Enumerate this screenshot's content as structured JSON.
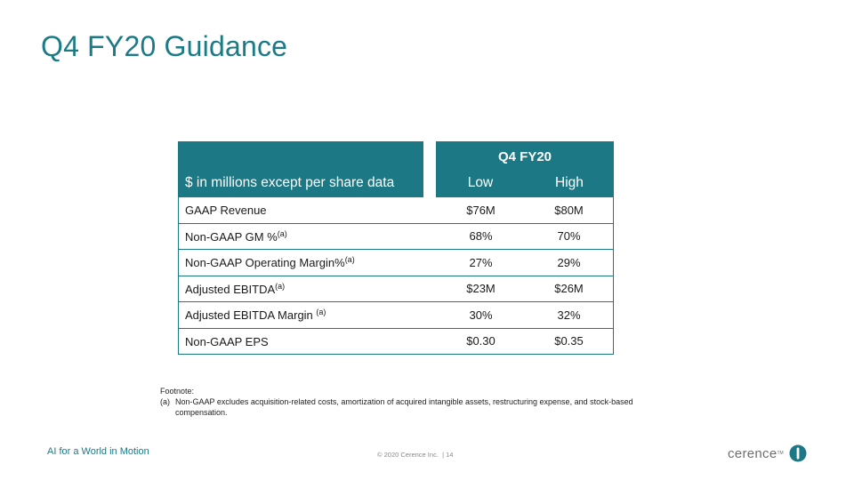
{
  "slide": {
    "title": "Q4 FY20 Guidance"
  },
  "table": {
    "row_header": "$ in millions except per share data",
    "period": "Q4 FY20",
    "col_low": "Low",
    "col_high": "High",
    "rows": [
      {
        "label": "GAAP  Revenue",
        "sup": "",
        "low": "$76M",
        "high": "$80M"
      },
      {
        "label": "Non-GAAP  GM %",
        "sup": "(a)",
        "low": "68%",
        "high": "70%"
      },
      {
        "label": "Non-GAAP  Operating Margin%",
        "sup": "(a)",
        "low": "27%",
        "high": "29%"
      },
      {
        "label": "Adjusted EBITDA",
        "sup": "(a)",
        "low": "$23M",
        "high": "$26M"
      },
      {
        "label": "Adjusted EBITDA Margin ",
        "sup": "(a)",
        "low": "30%",
        "high": "32%"
      },
      {
        "label": "Non-GAAP  EPS",
        "sup": "",
        "low": "$0.30",
        "high": "$0.35"
      }
    ]
  },
  "footnote": {
    "heading": "Footnote:",
    "mark": "(a)",
    "text": "Non-GAAP excludes acquisition-related costs, amortization of acquired intangible assets, restructuring expense, and stock-based compensation."
  },
  "footer": {
    "tagline": "AI for a World in Motion",
    "copyright": "© 2020 Cerence Inc.  | 14",
    "logo_text": "cerence",
    "logo_tm": "TM",
    "brand_color": "#1c7884"
  }
}
